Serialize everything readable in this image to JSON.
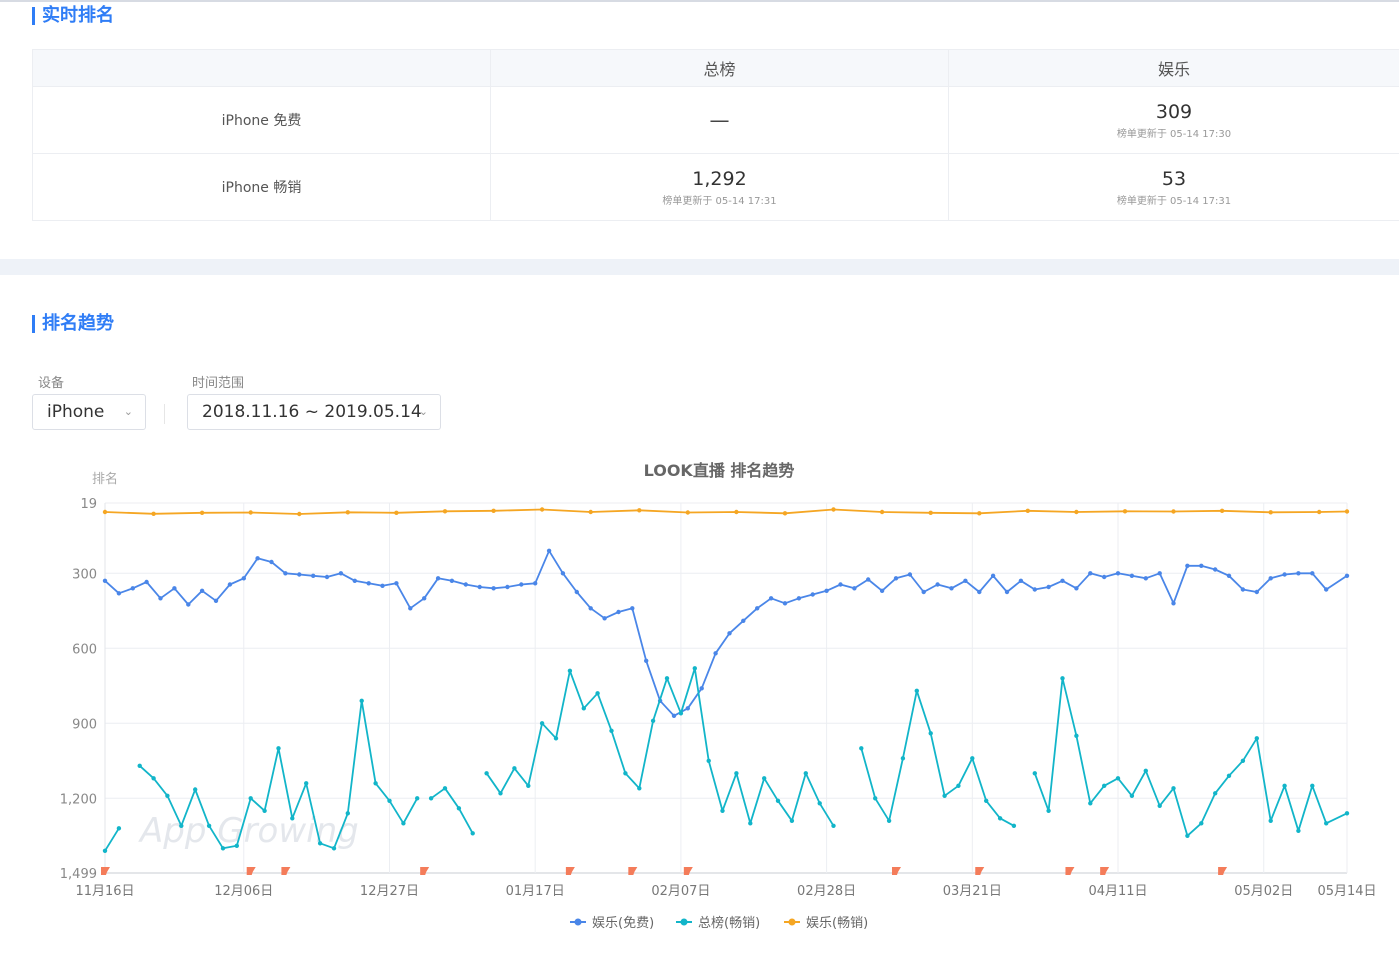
{
  "realtime": {
    "title": "实时排名",
    "columns": [
      "",
      "总榜",
      "娱乐"
    ],
    "rows": [
      {
        "label": "iPhone 免费",
        "overall": {
          "value": "—",
          "updated": ""
        },
        "ent": {
          "value": "309",
          "updated": "榜单更新于 05-14 17:30"
        }
      },
      {
        "label": "iPhone 畅销",
        "overall": {
          "value": "1,292",
          "updated": "榜单更新于 05-14 17:31"
        },
        "ent": {
          "value": "53",
          "updated": "榜单更新于 05-14 17:31"
        }
      }
    ]
  },
  "trend": {
    "title": "排名趋势",
    "device_label": "设备",
    "device_value": "iPhone",
    "range_label": "时间范围",
    "range_value": "2018.11.16 ~ 2019.05.14",
    "caret": "⌄"
  },
  "colors": {
    "accent": "#2f7df6",
    "free": "#4a86e8",
    "overall": "#12b5c9",
    "grossing": "#f5a623",
    "flag": "#f47c5a"
  },
  "chart_data": {
    "type": "line",
    "title": "LOOK直播 排名趋势",
    "ylabel": "排名",
    "y_inverted": true,
    "ylim": [
      19,
      1499
    ],
    "yticks": [
      19,
      300,
      600,
      900,
      1200,
      1499
    ],
    "ytick_labels": [
      "19",
      "300",
      "600",
      "900",
      "1,200",
      "1,499"
    ],
    "x_range": [
      "2018-11-16",
      "2019-05-14"
    ],
    "xticks": [
      "2018-11-16",
      "2018-12-06",
      "2018-12-27",
      "2019-01-17",
      "2019-02-07",
      "2019-02-28",
      "2019-03-21",
      "2019-04-11",
      "2019-05-02",
      "2019-05-14"
    ],
    "xtick_labels": [
      "11月16日",
      "12月06日",
      "12月27日",
      "01月17日",
      "02月07日",
      "02月28日",
      "03月21日",
      "04月11日",
      "05月02日",
      "05月14日"
    ],
    "legend_position": "bottom",
    "grid": true,
    "watermark": "App Growing",
    "series": [
      {
        "name": "娱乐(免费)",
        "color": "#4a86e8",
        "points": [
          [
            "2018-11-16",
            330
          ],
          [
            "2018-11-18",
            380
          ],
          [
            "2018-11-20",
            360
          ],
          [
            "2018-11-22",
            335
          ],
          [
            "2018-11-24",
            400
          ],
          [
            "2018-11-26",
            360
          ],
          [
            "2018-11-28",
            425
          ],
          [
            "2018-11-30",
            370
          ],
          [
            "2018-12-02",
            410
          ],
          [
            "2018-12-04",
            345
          ],
          [
            "2018-12-06",
            320
          ],
          [
            "2018-12-08",
            240
          ],
          [
            "2018-12-10",
            255
          ],
          [
            "2018-12-12",
            300
          ],
          [
            "2018-12-14",
            305
          ],
          [
            "2018-12-16",
            310
          ],
          [
            "2018-12-18",
            315
          ],
          [
            "2018-12-20",
            300
          ],
          [
            "2018-12-22",
            330
          ],
          [
            "2018-12-24",
            340
          ],
          [
            "2018-12-26",
            350
          ],
          [
            "2018-12-28",
            340
          ],
          [
            "2018-12-30",
            440
          ],
          [
            "2019-01-01",
            400
          ],
          [
            "2019-01-03",
            320
          ],
          [
            "2019-01-05",
            330
          ],
          [
            "2019-01-07",
            345
          ],
          [
            "2019-01-09",
            355
          ],
          [
            "2019-01-11",
            360
          ],
          [
            "2019-01-13",
            355
          ],
          [
            "2019-01-15",
            345
          ],
          [
            "2019-01-17",
            340
          ],
          [
            "2019-01-19",
            210
          ],
          [
            "2019-01-21",
            300
          ],
          [
            "2019-01-23",
            375
          ],
          [
            "2019-01-25",
            440
          ],
          [
            "2019-01-27",
            480
          ],
          [
            "2019-01-29",
            455
          ],
          [
            "2019-01-31",
            440
          ],
          [
            "2019-02-02",
            650
          ],
          [
            "2019-02-04",
            810
          ],
          [
            "2019-02-06",
            870
          ],
          [
            "2019-02-08",
            840
          ],
          [
            "2019-02-10",
            760
          ],
          [
            "2019-02-12",
            620
          ],
          [
            "2019-02-14",
            540
          ],
          [
            "2019-02-16",
            490
          ],
          [
            "2019-02-18",
            440
          ],
          [
            "2019-02-20",
            400
          ],
          [
            "2019-02-22",
            420
          ],
          [
            "2019-02-24",
            400
          ],
          [
            "2019-02-26",
            385
          ],
          [
            "2019-02-28",
            370
          ],
          [
            "2019-03-02",
            345
          ],
          [
            "2019-03-04",
            360
          ],
          [
            "2019-03-06",
            325
          ],
          [
            "2019-03-08",
            370
          ],
          [
            "2019-03-10",
            320
          ],
          [
            "2019-03-12",
            305
          ],
          [
            "2019-03-14",
            375
          ],
          [
            "2019-03-16",
            345
          ],
          [
            "2019-03-18",
            360
          ],
          [
            "2019-03-20",
            330
          ],
          [
            "2019-03-22",
            375
          ],
          [
            "2019-03-24",
            310
          ],
          [
            "2019-03-26",
            375
          ],
          [
            "2019-03-28",
            330
          ],
          [
            "2019-03-30",
            365
          ],
          [
            "2019-04-01",
            355
          ],
          [
            "2019-04-03",
            330
          ],
          [
            "2019-04-05",
            360
          ],
          [
            "2019-04-07",
            300
          ],
          [
            "2019-04-09",
            315
          ],
          [
            "2019-04-11",
            300
          ],
          [
            "2019-04-13",
            310
          ],
          [
            "2019-04-15",
            320
          ],
          [
            "2019-04-17",
            300
          ],
          [
            "2019-04-19",
            420
          ],
          [
            "2019-04-21",
            270
          ],
          [
            "2019-04-23",
            270
          ],
          [
            "2019-04-25",
            285
          ],
          [
            "2019-04-27",
            310
          ],
          [
            "2019-04-29",
            365
          ],
          [
            "2019-05-01",
            375
          ],
          [
            "2019-05-03",
            320
          ],
          [
            "2019-05-05",
            305
          ],
          [
            "2019-05-07",
            300
          ],
          [
            "2019-05-09",
            300
          ],
          [
            "2019-05-11",
            365
          ],
          [
            "2019-05-14",
            310
          ]
        ]
      },
      {
        "name": "总榜(畅销)",
        "color": "#12b5c9",
        "points": [
          [
            "2018-11-16",
            1410
          ],
          [
            "2018-11-18",
            1320
          ],
          [
            "2018-11-20",
            null
          ],
          [
            "2018-11-21",
            1070
          ],
          [
            "2018-11-23",
            1120
          ],
          [
            "2018-11-25",
            1190
          ],
          [
            "2018-11-27",
            1310
          ],
          [
            "2018-11-29",
            1165
          ],
          [
            "2018-12-01",
            1310
          ],
          [
            "2018-12-03",
            1400
          ],
          [
            "2018-12-05",
            1390
          ],
          [
            "2018-12-07",
            1200
          ],
          [
            "2018-12-09",
            1250
          ],
          [
            "2018-12-11",
            1000
          ],
          [
            "2018-12-13",
            1280
          ],
          [
            "2018-12-15",
            1140
          ],
          [
            "2018-12-17",
            1380
          ],
          [
            "2018-12-19",
            1400
          ],
          [
            "2018-12-21",
            1260
          ],
          [
            "2018-12-23",
            810
          ],
          [
            "2018-12-25",
            1140
          ],
          [
            "2018-12-27",
            1210
          ],
          [
            "2018-12-29",
            1300
          ],
          [
            "2018-12-31",
            1200
          ],
          [
            "2019-01-01",
            null
          ],
          [
            "2019-01-02",
            1200
          ],
          [
            "2019-01-04",
            1160
          ],
          [
            "2019-01-06",
            1240
          ],
          [
            "2019-01-08",
            1340
          ],
          [
            "2019-01-09",
            null
          ],
          [
            "2019-01-10",
            1100
          ],
          [
            "2019-01-12",
            1180
          ],
          [
            "2019-01-14",
            1080
          ],
          [
            "2019-01-16",
            1150
          ],
          [
            "2019-01-18",
            900
          ],
          [
            "2019-01-20",
            960
          ],
          [
            "2019-01-22",
            690
          ],
          [
            "2019-01-24",
            840
          ],
          [
            "2019-01-26",
            780
          ],
          [
            "2019-01-28",
            930
          ],
          [
            "2019-01-30",
            1100
          ],
          [
            "2019-02-01",
            1160
          ],
          [
            "2019-02-03",
            890
          ],
          [
            "2019-02-05",
            720
          ],
          [
            "2019-02-07",
            860
          ],
          [
            "2019-02-09",
            680
          ],
          [
            "2019-02-11",
            1050
          ],
          [
            "2019-02-13",
            1250
          ],
          [
            "2019-02-15",
            1100
          ],
          [
            "2019-02-17",
            1300
          ],
          [
            "2019-02-19",
            1120
          ],
          [
            "2019-02-21",
            1210
          ],
          [
            "2019-02-23",
            1290
          ],
          [
            "2019-02-25",
            1100
          ],
          [
            "2019-02-27",
            1220
          ],
          [
            "2019-03-01",
            1310
          ],
          [
            "2019-03-02",
            null
          ],
          [
            "2019-03-05",
            1000
          ],
          [
            "2019-03-07",
            1200
          ],
          [
            "2019-03-09",
            1290
          ],
          [
            "2019-03-11",
            1040
          ],
          [
            "2019-03-13",
            770
          ],
          [
            "2019-03-15",
            940
          ],
          [
            "2019-03-17",
            1190
          ],
          [
            "2019-03-19",
            1150
          ],
          [
            "2019-03-21",
            1040
          ],
          [
            "2019-03-23",
            1210
          ],
          [
            "2019-03-25",
            1280
          ],
          [
            "2019-03-27",
            1310
          ],
          [
            "2019-03-28",
            null
          ],
          [
            "2019-03-30",
            1100
          ],
          [
            "2019-04-01",
            1250
          ],
          [
            "2019-04-03",
            720
          ],
          [
            "2019-04-05",
            950
          ],
          [
            "2019-04-07",
            1220
          ],
          [
            "2019-04-09",
            1150
          ],
          [
            "2019-04-11",
            1120
          ],
          [
            "2019-04-13",
            1190
          ],
          [
            "2019-04-15",
            1090
          ],
          [
            "2019-04-17",
            1230
          ],
          [
            "2019-04-19",
            1160
          ],
          [
            "2019-04-21",
            1350
          ],
          [
            "2019-04-23",
            1300
          ],
          [
            "2019-04-25",
            1180
          ],
          [
            "2019-04-27",
            1110
          ],
          [
            "2019-04-29",
            1050
          ],
          [
            "2019-05-01",
            960
          ],
          [
            "2019-05-03",
            1290
          ],
          [
            "2019-05-05",
            1150
          ],
          [
            "2019-05-07",
            1330
          ],
          [
            "2019-05-09",
            1150
          ],
          [
            "2019-05-11",
            1300
          ],
          [
            "2019-05-14",
            1260
          ]
        ]
      },
      {
        "name": "娱乐(畅销)",
        "color": "#f5a623",
        "points": [
          [
            "2018-11-16",
            55
          ],
          [
            "2018-11-23",
            62
          ],
          [
            "2018-11-30",
            58
          ],
          [
            "2018-12-07",
            57
          ],
          [
            "2018-12-14",
            63
          ],
          [
            "2018-12-21",
            56
          ],
          [
            "2018-12-28",
            58
          ],
          [
            "2019-01-04",
            52
          ],
          [
            "2019-01-11",
            50
          ],
          [
            "2019-01-18",
            45
          ],
          [
            "2019-01-25",
            55
          ],
          [
            "2019-02-01",
            48
          ],
          [
            "2019-02-08",
            57
          ],
          [
            "2019-02-15",
            55
          ],
          [
            "2019-02-22",
            60
          ],
          [
            "2019-03-01",
            45
          ],
          [
            "2019-03-08",
            55
          ],
          [
            "2019-03-15",
            58
          ],
          [
            "2019-03-22",
            60
          ],
          [
            "2019-03-29",
            50
          ],
          [
            "2019-04-05",
            55
          ],
          [
            "2019-04-12",
            52
          ],
          [
            "2019-04-19",
            53
          ],
          [
            "2019-04-26",
            50
          ],
          [
            "2019-05-03",
            56
          ],
          [
            "2019-05-10",
            55
          ],
          [
            "2019-05-14",
            53
          ]
        ]
      }
    ],
    "flag_dates": [
      "2018-11-16",
      "2018-12-07",
      "2018-12-12",
      "2019-01-01",
      "2019-01-22",
      "2019-01-31",
      "2019-02-08",
      "2019-03-10",
      "2019-03-22",
      "2019-04-04",
      "2019-04-09",
      "2019-04-26"
    ]
  }
}
